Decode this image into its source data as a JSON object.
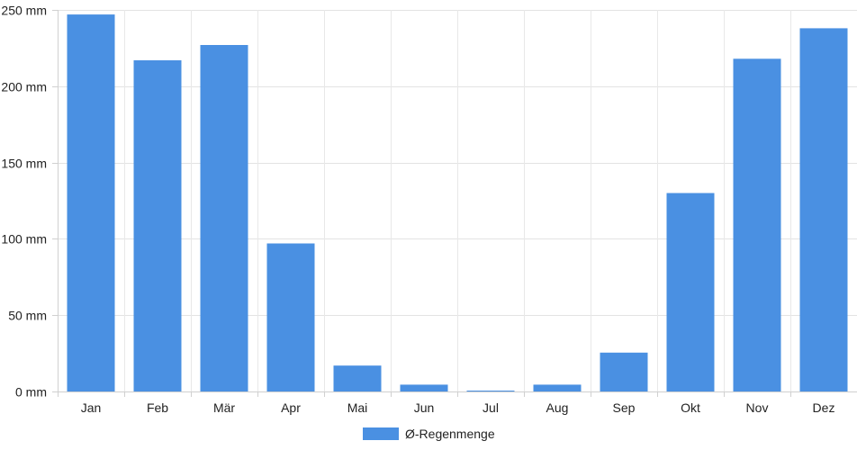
{
  "chart_data": {
    "type": "bar",
    "categories": [
      "Jan",
      "Feb",
      "Mär",
      "Apr",
      "Mai",
      "Jun",
      "Jul",
      "Aug",
      "Sep",
      "Okt",
      "Nov",
      "Dez"
    ],
    "series": [
      {
        "name": "Ø-Regenmenge",
        "values": [
          247,
          217,
          227,
          97,
          17,
          4.5,
          0.6,
          4.5,
          25.5,
          130,
          218,
          238
        ],
        "color": "#4a90e2"
      }
    ],
    "ylim": [
      0,
      250
    ],
    "y_ticks": [
      {
        "value": 0,
        "label": "0 mm"
      },
      {
        "value": 50,
        "label": "50 mm"
      },
      {
        "value": 100,
        "label": "100 mm"
      },
      {
        "value": 150,
        "label": "150 mm"
      },
      {
        "value": 200,
        "label": "200 mm"
      },
      {
        "value": 250,
        "label": "250 mm"
      }
    ],
    "grid": true,
    "legend_position": "bottom-center",
    "title": "",
    "xlabel": "",
    "ylabel": ""
  }
}
